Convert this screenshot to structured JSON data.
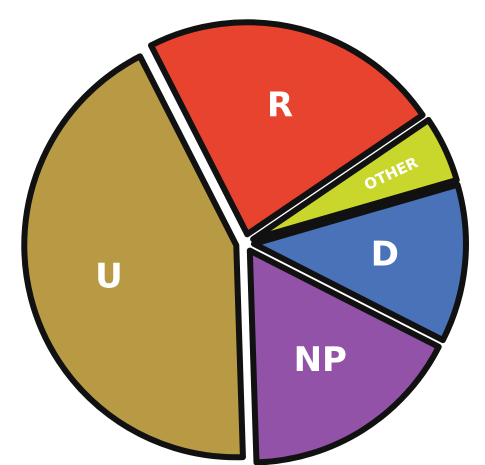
{
  "chart_data": {
    "type": "pie",
    "categories": [
      "R",
      "OTHER",
      "D",
      "NP",
      "U"
    ],
    "values": [
      23,
      5,
      12,
      17,
      43
    ],
    "colors": [
      "#e8432f",
      "#c9d62c",
      "#4a72b8",
      "#9152a8",
      "#b89a45"
    ],
    "startangle": -27,
    "counterclock": false
  }
}
